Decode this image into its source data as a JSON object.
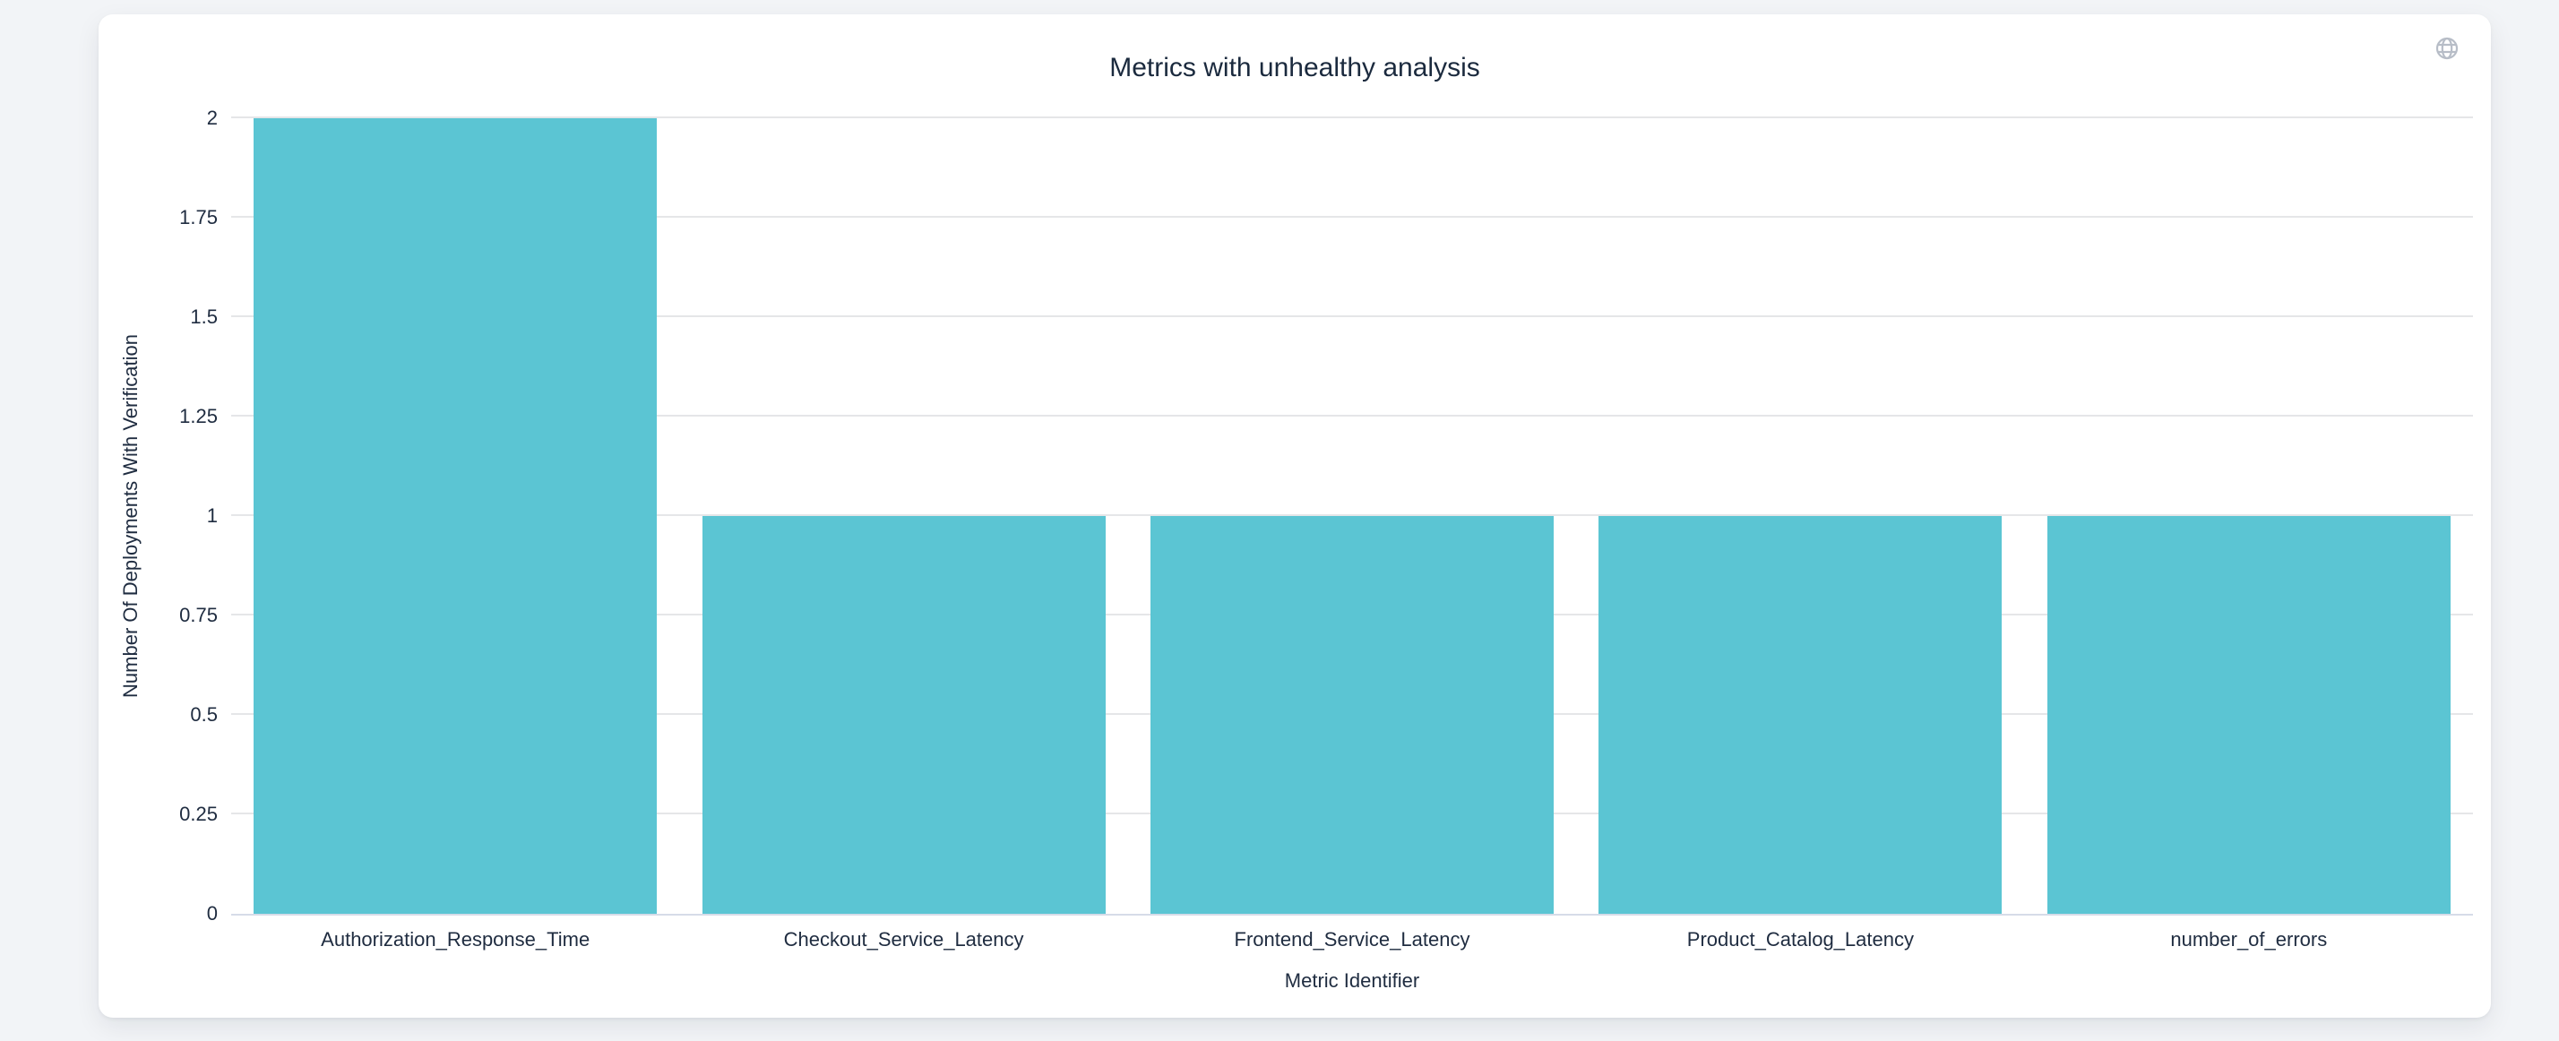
{
  "header": {
    "title": "Metrics with unhealthy analysis"
  },
  "toolbar": {
    "icons": [
      {
        "name": "globe-icon",
        "color": "#b7bdc7"
      }
    ]
  },
  "chart_data": {
    "type": "bar",
    "title": "Metrics with unhealthy analysis",
    "categories": [
      "Authorization_Response_Time",
      "Checkout_Service_Latency",
      "Frontend_Service_Latency",
      "Product_Catalog_Latency",
      "number_of_errors"
    ],
    "values": [
      2,
      1,
      1,
      1,
      1
    ],
    "xlabel": "Metric Identifier",
    "ylabel": "Number Of Deployments With Verification",
    "ylim": [
      0,
      2
    ],
    "yticks": [
      0,
      0.25,
      0.5,
      0.75,
      1,
      1.25,
      1.5,
      1.75,
      2
    ],
    "ytick_labels": [
      "0",
      "0.25",
      "0.5",
      "0.75",
      "1",
      "1.25",
      "1.5",
      "1.75",
      "2"
    ],
    "bar_color": "#5bc5d3",
    "grid": true,
    "gridline_color": "#e5e6e8",
    "axis_line_color": "#d6dce8",
    "text_color": "#1f2c40",
    "legend": false
  }
}
